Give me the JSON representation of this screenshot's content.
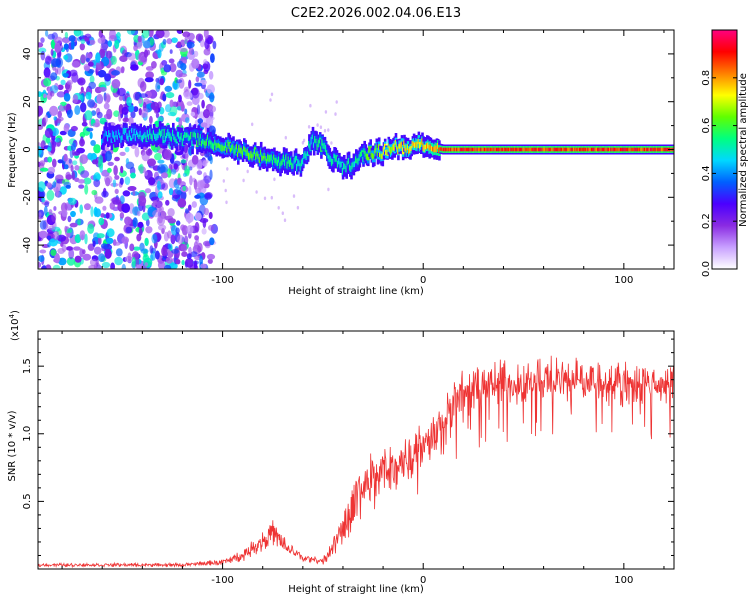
{
  "title": "C2E2.2026.002.04.06.E13",
  "chart_data": [
    {
      "type": "heatmap",
      "name": "spectrogram",
      "xlabel": "Height of straight line (km)",
      "ylabel": "Frequency (Hz)",
      "xlim": [
        -192,
        125
      ],
      "ylim": [
        -50,
        50
      ],
      "x_ticks": [
        -100,
        0,
        100
      ],
      "x_tick_labels": [
        "-100",
        "0",
        "100"
      ],
      "y_ticks": [
        -40,
        -20,
        0,
        20,
        40
      ],
      "y_tick_labels": [
        "-40",
        "-20",
        "0",
        "20",
        "40"
      ],
      "colorbar": {
        "label": "Normalized spectral amplitude",
        "range": [
          0,
          1
        ],
        "ticks": [
          0.0,
          0.2,
          0.4,
          0.6,
          0.8
        ],
        "tick_labels": [
          "0.0",
          "0.2",
          "0.4",
          "0.6",
          "0.8"
        ],
        "colors": [
          "#ffffff",
          "#c8a0ff",
          "#8a2be2",
          "#4b00ff",
          "#0060ff",
          "#00d8ff",
          "#00ff80",
          "#60ff00",
          "#ffff00",
          "#ff8000",
          "#ff0000",
          "#ff0080"
        ]
      },
      "noise_region_x": [
        -192,
        -104
      ],
      "ridge": [
        {
          "x": -160,
          "y": 5,
          "a": 0.45
        },
        {
          "x": -150,
          "y": 6,
          "a": 0.5
        },
        {
          "x": -130,
          "y": 6,
          "a": 0.55
        },
        {
          "x": -120,
          "y": 5,
          "a": 0.55
        },
        {
          "x": -110,
          "y": 4,
          "a": 0.6
        },
        {
          "x": -100,
          "y": 2,
          "a": 0.65
        },
        {
          "x": -90,
          "y": -1,
          "a": 0.65
        },
        {
          "x": -80,
          "y": -3,
          "a": 0.65
        },
        {
          "x": -70,
          "y": -5,
          "a": 0.6
        },
        {
          "x": -60,
          "y": -6,
          "a": 0.55
        },
        {
          "x": -55,
          "y": 4,
          "a": 0.55
        },
        {
          "x": -50,
          "y": 1,
          "a": 0.6
        },
        {
          "x": -45,
          "y": -4,
          "a": 0.55
        },
        {
          "x": -40,
          "y": -8,
          "a": 0.55
        },
        {
          "x": -35,
          "y": -6,
          "a": 0.55
        },
        {
          "x": -30,
          "y": -3,
          "a": 0.6
        },
        {
          "x": -25,
          "y": -1,
          "a": 0.7
        },
        {
          "x": -20,
          "y": -1,
          "a": 0.75
        },
        {
          "x": -15,
          "y": 1,
          "a": 0.75
        },
        {
          "x": -10,
          "y": 1,
          "a": 0.8
        },
        {
          "x": -5,
          "y": 1,
          "a": 0.8
        },
        {
          "x": 0,
          "y": 2,
          "a": 0.8
        },
        {
          "x": 5,
          "y": 1,
          "a": 0.85
        },
        {
          "x": 10,
          "y": 0,
          "a": 0.95
        },
        {
          "x": 30,
          "y": 0,
          "a": 0.95
        },
        {
          "x": 60,
          "y": 0,
          "a": 0.95
        },
        {
          "x": 90,
          "y": 0,
          "a": 0.95
        },
        {
          "x": 125,
          "y": 0,
          "a": 0.95
        }
      ]
    },
    {
      "type": "line",
      "name": "snr",
      "xlabel": "Height of straight line (km)",
      "ylabel": "SNR (10 * v/v)",
      "y_multiplier": "(x10",
      "y_multiplier_exp": "4",
      "y_multiplier_close": ")",
      "xlim": [
        -192,
        125
      ],
      "ylim": [
        0,
        17600
      ],
      "x_ticks": [
        -100,
        0,
        100
      ],
      "x_tick_labels": [
        "-100",
        "0",
        "100"
      ],
      "y_ticks": [
        5000,
        10000,
        15000
      ],
      "y_tick_labels": [
        "0.5",
        "1.0",
        "1.5"
      ],
      "color": "#ee3333",
      "envelope_x": [
        -192,
        -150,
        -120,
        -100,
        -90,
        -80,
        -75,
        -70,
        -60,
        -50,
        -45,
        -40,
        -35,
        -30,
        -25,
        -20,
        -15,
        -10,
        -5,
        0,
        5,
        10,
        15,
        20,
        25,
        30,
        40,
        50,
        60,
        70,
        80,
        90,
        100,
        110,
        125
      ],
      "envelope_y": [
        300,
        300,
        300,
        500,
        1000,
        2100,
        2700,
        1800,
        800,
        600,
        1500,
        3300,
        4900,
        6000,
        6700,
        7300,
        7600,
        8100,
        8800,
        9200,
        10000,
        11000,
        12000,
        12800,
        13200,
        13500,
        13800,
        13900,
        13900,
        14000,
        13900,
        13900,
        13800,
        13700,
        13600
      ],
      "noise_frac": [
        0.4,
        0.4,
        0.4,
        0.4,
        0.35,
        0.35,
        0.35,
        0.35,
        0.35,
        0.35,
        0.4,
        0.4,
        0.35,
        0.3,
        0.3,
        0.28,
        0.25,
        0.22,
        0.2,
        0.18,
        0.16,
        0.15,
        0.14,
        0.13,
        0.12,
        0.12,
        0.11,
        0.11,
        0.11,
        0.11,
        0.11,
        0.11,
        0.11,
        0.11,
        0.11
      ]
    }
  ]
}
